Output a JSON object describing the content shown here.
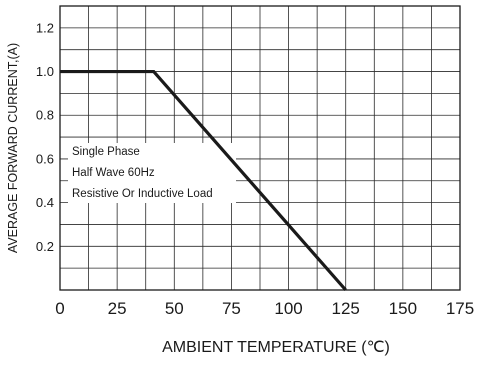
{
  "chart_data": {
    "type": "line",
    "xlabel": "AMBIENT TEMPERATURE (℃)",
    "ylabel": "AVERAGE FORWARD CURRENT,(A)",
    "xlim": [
      0,
      175
    ],
    "ylim": [
      0,
      1.3
    ],
    "x_ticks": [
      "0",
      "25",
      "50",
      "75",
      "100",
      "125",
      "150",
      "175"
    ],
    "y_ticks": [
      "0.2",
      "0.4",
      "0.6",
      "0.8",
      "1.0",
      "1.2"
    ],
    "grid": true,
    "series": [
      {
        "x": [
          0,
          41,
          125
        ],
        "y": [
          1.0,
          1.0,
          0
        ]
      }
    ],
    "annotations": [
      "Single Phase",
      "Half Wave 60Hz",
      "Resistive Or Inductive Load"
    ]
  }
}
